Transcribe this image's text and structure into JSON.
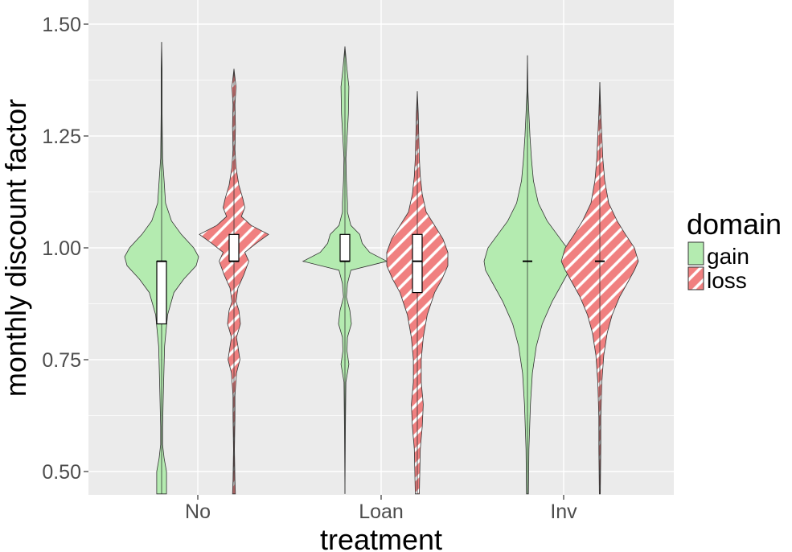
{
  "chart_data": {
    "type": "violin",
    "xlabel": "treatment",
    "ylabel": "monthly discount factor",
    "categories": [
      "No",
      "Loan",
      "Inv"
    ],
    "ylim": [
      0.45,
      1.55
    ],
    "y_ticks": [
      "0.50",
      "0.75",
      "1.00",
      "1.25",
      "1.50"
    ],
    "y_tick_values": [
      0.5,
      0.75,
      1.0,
      1.25,
      1.5
    ],
    "grid": true,
    "legend": {
      "title": "domain",
      "position": "right",
      "entries": [
        "gain",
        "loss"
      ]
    },
    "colors": {
      "gain": "#b4ebb0",
      "loss": "#f08080",
      "panel": "#ebebeb",
      "grid": "#ffffff"
    },
    "series": [
      {
        "name": "gain",
        "pattern": "solid",
        "groups": [
          {
            "category": "No",
            "ymin": 0.45,
            "ymax": 1.46,
            "box": {
              "q1": 0.83,
              "median": 0.97,
              "q3": 0.97
            },
            "density": [
              [
                0.45,
                0.01
              ],
              [
                0.5,
                0.01
              ],
              [
                0.53,
                0.005
              ],
              [
                0.56,
                0.002
              ],
              [
                0.6,
                0.002
              ],
              [
                0.7,
                0.004
              ],
              [
                0.78,
                0.006
              ],
              [
                0.85,
                0.012
              ],
              [
                0.9,
                0.025
              ],
              [
                0.93,
                0.045
              ],
              [
                0.96,
                0.07
              ],
              [
                0.98,
                0.075
              ],
              [
                1.0,
                0.065
              ],
              [
                1.03,
                0.04
              ],
              [
                1.06,
                0.02
              ],
              [
                1.1,
                0.008
              ],
              [
                1.15,
                0.005
              ],
              [
                1.2,
                0.002
              ],
              [
                1.3,
                0.001
              ],
              [
                1.4,
                0.001
              ],
              [
                1.46,
                0.0
              ]
            ]
          },
          {
            "category": "Loan",
            "ymin": 0.45,
            "ymax": 1.45,
            "box": {
              "q1": 0.97,
              "median": 0.97,
              "q3": 1.03
            },
            "density": [
              [
                0.45,
                0.0
              ],
              [
                0.6,
                0.001
              ],
              [
                0.7,
                0.002
              ],
              [
                0.74,
                0.008
              ],
              [
                0.77,
                0.004
              ],
              [
                0.8,
                0.005
              ],
              [
                0.83,
                0.013
              ],
              [
                0.86,
                0.01
              ],
              [
                0.89,
                0.003
              ],
              [
                0.92,
                0.005
              ],
              [
                0.95,
                0.012
              ],
              [
                0.97,
                0.085
              ],
              [
                0.99,
                0.05
              ],
              [
                1.01,
                0.035
              ],
              [
                1.03,
                0.03
              ],
              [
                1.05,
                0.012
              ],
              [
                1.08,
                0.005
              ],
              [
                1.1,
                0.005
              ],
              [
                1.15,
                0.003
              ],
              [
                1.2,
                0.002
              ],
              [
                1.3,
                0.007
              ],
              [
                1.36,
                0.008
              ],
              [
                1.4,
                0.004
              ],
              [
                1.45,
                0.0
              ]
            ]
          },
          {
            "category": "Inv",
            "ymin": 0.45,
            "ymax": 1.43,
            "box": {
              "q1": 0.97,
              "median": 0.97,
              "q3": 0.97
            },
            "density": [
              [
                0.45,
                0.002
              ],
              [
                0.55,
                0.003
              ],
              [
                0.65,
                0.006
              ],
              [
                0.72,
                0.01
              ],
              [
                0.78,
                0.018
              ],
              [
                0.83,
                0.03
              ],
              [
                0.88,
                0.05
              ],
              [
                0.92,
                0.07
              ],
              [
                0.95,
                0.085
              ],
              [
                0.97,
                0.088
              ],
              [
                1.0,
                0.08
              ],
              [
                1.03,
                0.06
              ],
              [
                1.06,
                0.04
              ],
              [
                1.1,
                0.022
              ],
              [
                1.15,
                0.012
              ],
              [
                1.2,
                0.008
              ],
              [
                1.25,
                0.005
              ],
              [
                1.3,
                0.003
              ],
              [
                1.35,
                0.001
              ],
              [
                1.43,
                0.0
              ]
            ]
          }
        ]
      },
      {
        "name": "loss",
        "pattern": "stripes",
        "groups": [
          {
            "category": "No",
            "ymin": 0.45,
            "ymax": 1.4,
            "box": {
              "q1": 0.97,
              "median": 0.97,
              "q3": 1.03
            },
            "density": [
              [
                0.45,
                0.003
              ],
              [
                0.48,
                0.002
              ],
              [
                0.55,
                0.001
              ],
              [
                0.62,
                0.002
              ],
              [
                0.67,
                0.002
              ],
              [
                0.72,
                0.005
              ],
              [
                0.75,
                0.012
              ],
              [
                0.78,
                0.008
              ],
              [
                0.8,
                0.005
              ],
              [
                0.83,
                0.013
              ],
              [
                0.86,
                0.01
              ],
              [
                0.88,
                0.004
              ],
              [
                0.91,
                0.008
              ],
              [
                0.94,
                0.02
              ],
              [
                0.97,
                0.03
              ],
              [
                0.99,
                0.022
              ],
              [
                1.01,
                0.045
              ],
              [
                1.03,
                0.07
              ],
              [
                1.05,
                0.035
              ],
              [
                1.07,
                0.015
              ],
              [
                1.09,
                0.022
              ],
              [
                1.11,
                0.018
              ],
              [
                1.14,
                0.01
              ],
              [
                1.18,
                0.004
              ],
              [
                1.22,
                0.002
              ],
              [
                1.27,
                0.003
              ],
              [
                1.32,
                0.002
              ],
              [
                1.36,
                0.004
              ],
              [
                1.4,
                0.0
              ]
            ]
          },
          {
            "category": "Loan",
            "ymin": 0.45,
            "ymax": 1.35,
            "box": {
              "q1": 0.9,
              "median": 0.97,
              "q3": 1.03
            },
            "density": [
              [
                0.45,
                0.004
              ],
              [
                0.5,
                0.005
              ],
              [
                0.55,
                0.006
              ],
              [
                0.6,
                0.01
              ],
              [
                0.65,
                0.012
              ],
              [
                0.7,
                0.008
              ],
              [
                0.75,
                0.008
              ],
              [
                0.8,
                0.012
              ],
              [
                0.85,
                0.02
              ],
              [
                0.9,
                0.035
              ],
              [
                0.93,
                0.05
              ],
              [
                0.96,
                0.062
              ],
              [
                0.99,
                0.062
              ],
              [
                1.02,
                0.052
              ],
              [
                1.05,
                0.035
              ],
              [
                1.08,
                0.018
              ],
              [
                1.12,
                0.01
              ],
              [
                1.16,
                0.006
              ],
              [
                1.2,
                0.004
              ],
              [
                1.25,
                0.003
              ],
              [
                1.3,
                0.002
              ],
              [
                1.35,
                0.0
              ]
            ]
          },
          {
            "category": "Inv",
            "ymin": 0.45,
            "ymax": 1.37,
            "box": {
              "q1": 0.97,
              "median": 0.97,
              "q3": 0.97
            },
            "density": [
              [
                0.45,
                0.001
              ],
              [
                0.55,
                0.002
              ],
              [
                0.62,
                0.002
              ],
              [
                0.7,
                0.004
              ],
              [
                0.76,
                0.008
              ],
              [
                0.81,
                0.015
              ],
              [
                0.85,
                0.025
              ],
              [
                0.89,
                0.04
              ],
              [
                0.92,
                0.055
              ],
              [
                0.95,
                0.07
              ],
              [
                0.97,
                0.078
              ],
              [
                1.0,
                0.07
              ],
              [
                1.03,
                0.052
              ],
              [
                1.06,
                0.035
              ],
              [
                1.1,
                0.018
              ],
              [
                1.15,
                0.01
              ],
              [
                1.2,
                0.006
              ],
              [
                1.25,
                0.004
              ],
              [
                1.3,
                0.002
              ],
              [
                1.37,
                0.0
              ]
            ]
          }
        ]
      }
    ]
  }
}
